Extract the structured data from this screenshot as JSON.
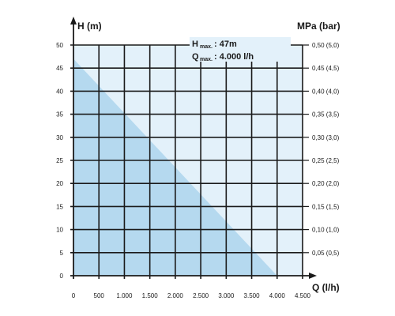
{
  "chart_data": {
    "type": "area",
    "title": "",
    "x_axis": {
      "label": "Q (l/h)",
      "min": 0,
      "max": 4500,
      "ticks": [
        0,
        500,
        1000,
        1500,
        2000,
        2500,
        3000,
        3500,
        4000,
        4500
      ],
      "tick_labels": [
        "0",
        "500",
        "1.000",
        "1.500",
        "2.000",
        "2.500",
        "3.000",
        "3.500",
        "4.000",
        "4.500"
      ]
    },
    "y_axis_left": {
      "label": "H (m)",
      "min": 0,
      "max": 50,
      "ticks": [
        0,
        5,
        10,
        15,
        20,
        25,
        30,
        35,
        40,
        45,
        50
      ],
      "tick_labels": [
        "0",
        "5",
        "10",
        "15",
        "20",
        "25",
        "30",
        "35",
        "40",
        "45",
        "50"
      ]
    },
    "y_axis_right": {
      "label": "MPa (bar)",
      "tick_labels": [
        "0,05 (0,5)",
        "0,10 (1,0)",
        "0,15 (1,5)",
        "0,20 (2,0)",
        "0,25 (2,5)",
        "0,30 (3,0)",
        "0,35 (3,5)",
        "0,40 (4,0)",
        "0,45 (4,5)",
        "0,50 (5,0)"
      ],
      "tick_values_m": [
        5,
        10,
        15,
        20,
        25,
        30,
        35,
        40,
        45,
        50
      ]
    },
    "series": [
      {
        "x": [
          0,
          4000
        ],
        "y": [
          47,
          0
        ],
        "fill": "#b5d9ef"
      }
    ],
    "legend": {
      "position": "top-right",
      "h_prefix": "H",
      "h_sub": "max.",
      "h_value": ": 47m",
      "q_prefix": "Q",
      "q_sub": "max.",
      "q_value": ": 4.000 l/h"
    },
    "grid": true,
    "colors": {
      "fill": "#b5d9ef",
      "plot_background": "#e3f1fa",
      "grid": "#1a1a1a",
      "text": "#1a1a1a"
    }
  }
}
